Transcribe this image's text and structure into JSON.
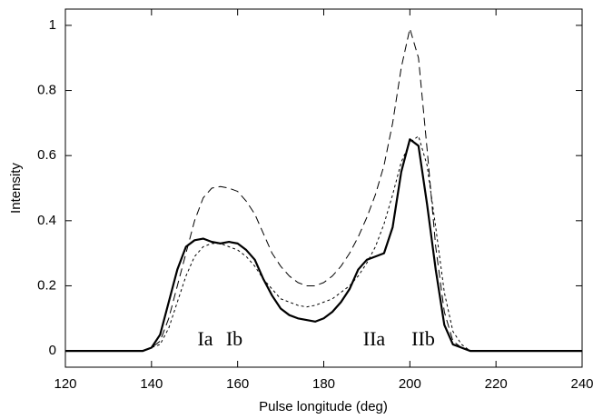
{
  "chart_data": {
    "type": "line",
    "x_label": "Pulse longitude (deg)",
    "y_label": "Intensity",
    "x": [
      120,
      122,
      124,
      126,
      128,
      130,
      132,
      134,
      136,
      138,
      140,
      142,
      144,
      146,
      148,
      150,
      152,
      154,
      156,
      158,
      160,
      162,
      164,
      166,
      168,
      170,
      172,
      174,
      176,
      178,
      180,
      182,
      184,
      186,
      188,
      190,
      192,
      194,
      196,
      198,
      200,
      202,
      204,
      206,
      208,
      210,
      212,
      214,
      216,
      218,
      220,
      222,
      224,
      226,
      228,
      230,
      232,
      234,
      236,
      238,
      240
    ],
    "series": [
      {
        "color": "#000000",
        "dash": "solid",
        "width": 2.2,
        "values": [
          0,
          0,
          0,
          0,
          0,
          0,
          0,
          0,
          0,
          0,
          0.01,
          0.05,
          0.15,
          0.25,
          0.32,
          0.34,
          0.345,
          0.335,
          0.33,
          0.335,
          0.33,
          0.31,
          0.28,
          0.22,
          0.17,
          0.13,
          0.11,
          0.1,
          0.095,
          0.09,
          0.1,
          0.12,
          0.15,
          0.19,
          0.25,
          0.28,
          0.29,
          0.3,
          0.38,
          0.55,
          0.65,
          0.63,
          0.45,
          0.25,
          0.08,
          0.02,
          0.01,
          0,
          0,
          0,
          0,
          0,
          0,
          0,
          0,
          0,
          0,
          0,
          0,
          0,
          0
        ]
      },
      {
        "color": "#000000",
        "dash": "long",
        "width": 1,
        "values": [
          0,
          0,
          0,
          0,
          0,
          0,
          0,
          0,
          0,
          0,
          0.01,
          0.03,
          0.1,
          0.2,
          0.3,
          0.4,
          0.47,
          0.5,
          0.505,
          0.5,
          0.49,
          0.46,
          0.42,
          0.36,
          0.3,
          0.26,
          0.23,
          0.21,
          0.2,
          0.2,
          0.21,
          0.23,
          0.26,
          0.3,
          0.35,
          0.41,
          0.48,
          0.57,
          0.7,
          0.87,
          0.99,
          0.9,
          0.62,
          0.32,
          0.12,
          0.03,
          0.01,
          0,
          0,
          0,
          0,
          0,
          0,
          0,
          0,
          0,
          0,
          0,
          0,
          0,
          0
        ]
      },
      {
        "color": "#000000",
        "dash": "short",
        "width": 1,
        "values": [
          0,
          0,
          0,
          0,
          0,
          0,
          0,
          0,
          0,
          0,
          0.01,
          0.02,
          0.07,
          0.15,
          0.23,
          0.29,
          0.32,
          0.33,
          0.33,
          0.32,
          0.31,
          0.29,
          0.26,
          0.22,
          0.19,
          0.16,
          0.15,
          0.14,
          0.135,
          0.14,
          0.15,
          0.16,
          0.18,
          0.2,
          0.23,
          0.27,
          0.32,
          0.39,
          0.48,
          0.58,
          0.64,
          0.66,
          0.57,
          0.38,
          0.18,
          0.06,
          0.02,
          0,
          0,
          0,
          0,
          0,
          0,
          0,
          0,
          0,
          0,
          0,
          0,
          0,
          0
        ]
      }
    ],
    "annotations": [
      "Ia",
      "Ib",
      "IIa",
      "IIb"
    ],
    "xlim": [
      120,
      240
    ],
    "xticks": [
      120,
      140,
      160,
      180,
      200,
      220,
      240
    ],
    "ylim": [
      -0.05,
      1.05
    ],
    "yticks": [
      0,
      0.2,
      0.4,
      0.6,
      0.8,
      1
    ],
    "grid": false
  }
}
